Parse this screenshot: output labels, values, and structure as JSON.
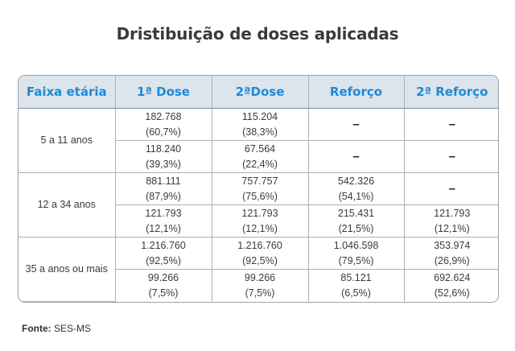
{
  "title": "Dristibuição de doses aplicadas",
  "table": {
    "headers": [
      "Faixa etária",
      "1ª Dose",
      "2ªDose",
      "Reforço",
      "2ª Reforço"
    ],
    "groups": [
      {
        "label": "5 a 11 anos",
        "rows": [
          [
            {
              "v": "182.768",
              "p": "(60,7%)"
            },
            {
              "v": "115.204",
              "p": "(38,3%)"
            },
            {
              "dash": "–"
            },
            {
              "dash": "–"
            }
          ],
          [
            {
              "v": "118.240",
              "p": "(39,3%)"
            },
            {
              "v": "67.564",
              "p": "(22,4%)"
            },
            {
              "dash": "–"
            },
            {
              "dash": "–"
            }
          ]
        ]
      },
      {
        "label": "12 a 34 anos",
        "rows": [
          [
            {
              "v": "881.111",
              "p": "(87,9%)"
            },
            {
              "v": "757.757",
              "p": "(75,6%)"
            },
            {
              "v": "542.326",
              "p": "(54,1%)"
            },
            {
              "dash": "–"
            }
          ],
          [
            {
              "v": "121.793",
              "p": "(12,1%)"
            },
            {
              "v": "121.793",
              "p": "(12,1%)"
            },
            {
              "v": "215.431",
              "p": "(21,5%)"
            },
            {
              "v": "121.793",
              "p": "(12,1%)"
            }
          ]
        ]
      },
      {
        "label": "35 a anos ou mais",
        "rows": [
          [
            {
              "v": "1.216.760",
              "p": "(92,5%)"
            },
            {
              "v": "1.216.760",
              "p": "(92,5%)"
            },
            {
              "v": "1.046.598",
              "p": "(79,5%)"
            },
            {
              "v": "353.974",
              "p": "(26,9%)"
            }
          ],
          [
            {
              "v": "99.266",
              "p": "(7,5%)"
            },
            {
              "v": "99.266",
              "p": "(7,5%)"
            },
            {
              "v": "85.121",
              "p": "(6,5%)"
            },
            {
              "v": "692.624",
              "p": "(52,6%)"
            }
          ]
        ]
      }
    ]
  },
  "source": {
    "label": "Fonte:",
    "text": "SES-MS"
  },
  "colors": {
    "header_bg": "#dce4ec",
    "header_text": "#1f8ad6"
  }
}
